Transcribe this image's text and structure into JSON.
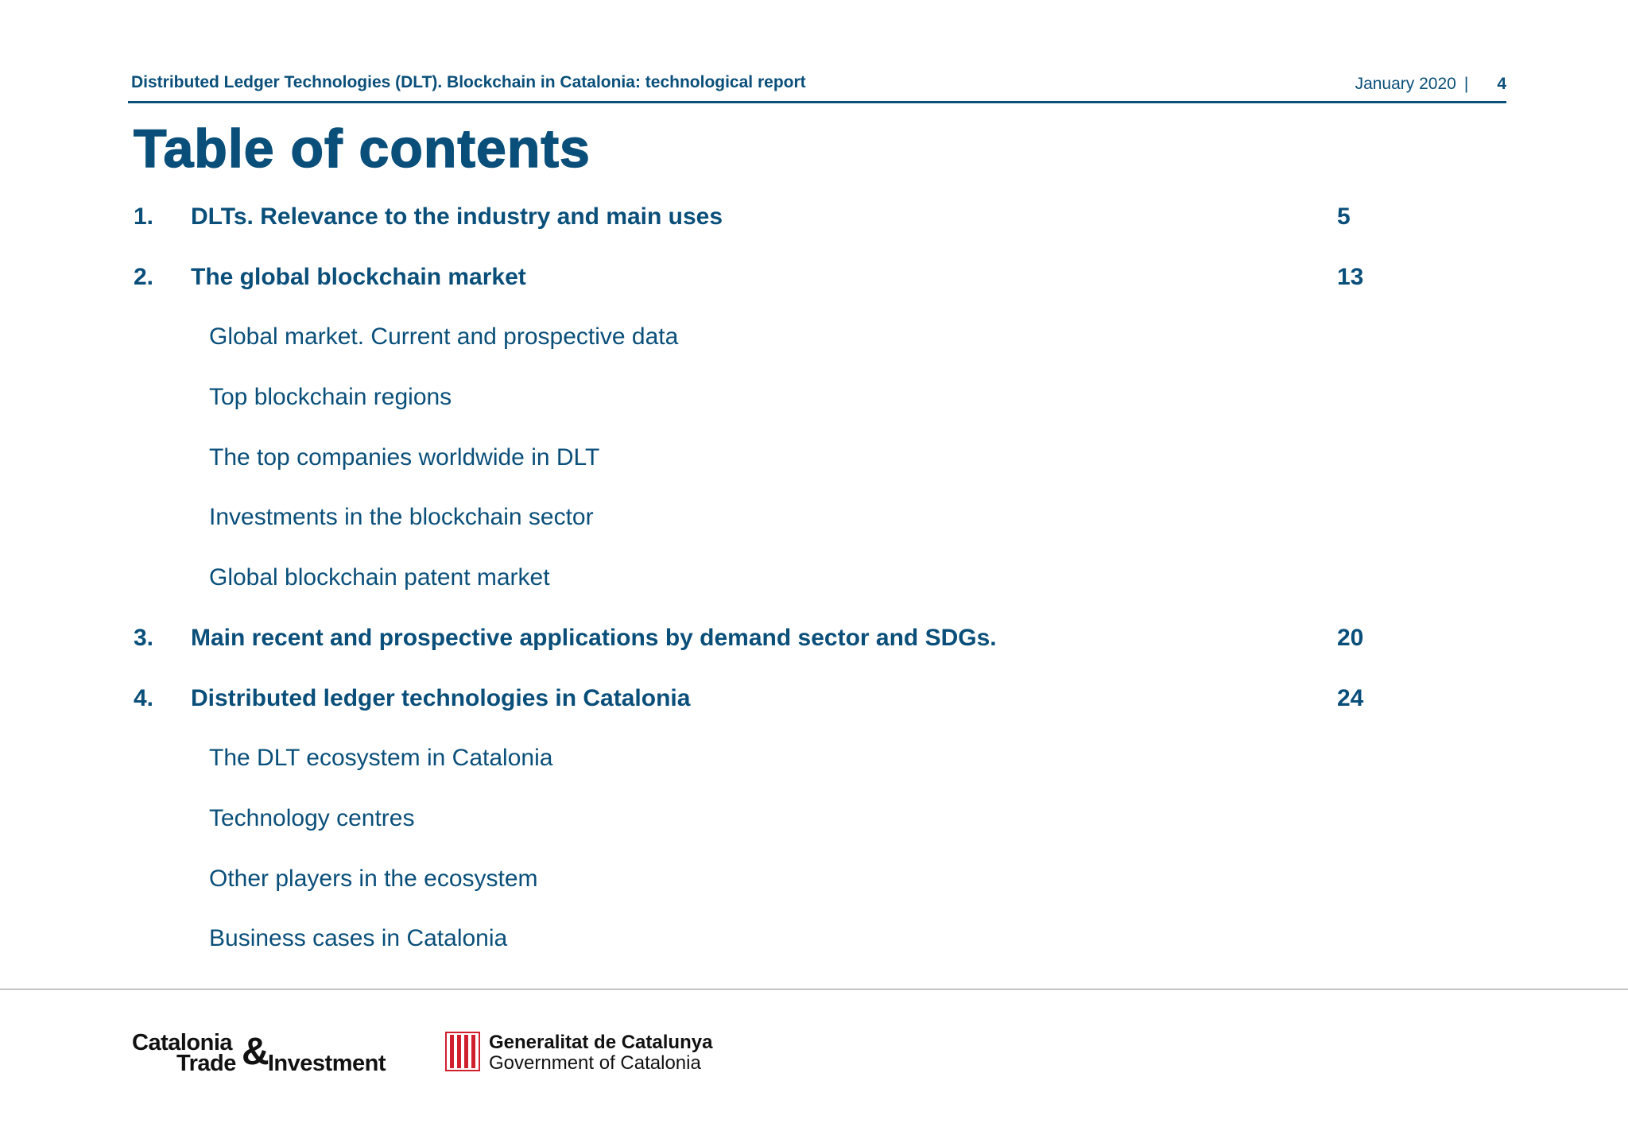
{
  "header": {
    "title": "Distributed Ledger Technologies (DLT). Blockchain in Catalonia: technological report",
    "date": "January 2020",
    "separator": "|",
    "page_number": "4"
  },
  "title": "Table of contents",
  "toc": [
    {
      "type": "main",
      "num": "1.",
      "label": "DLTs. Relevance to the industry and main uses",
      "page": "5"
    },
    {
      "type": "main",
      "num": "2.",
      "label": "The global blockchain market",
      "page": "13"
    },
    {
      "type": "sub",
      "label": "Global market. Current and prospective data"
    },
    {
      "type": "sub",
      "label": "Top blockchain regions"
    },
    {
      "type": "sub",
      "label": "The top companies worldwide in DLT"
    },
    {
      "type": "sub",
      "label": "Investments in the blockchain sector"
    },
    {
      "type": "sub",
      "label": "Global blockchain patent market"
    },
    {
      "type": "main",
      "num": "3.",
      "label": "Main recent and prospective applications by demand sector and SDGs.",
      "page": "20"
    },
    {
      "type": "main",
      "num": "4.",
      "label": "Distributed ledger technologies in Catalonia",
      "page": "24"
    },
    {
      "type": "sub",
      "label": "The DLT ecosystem in Catalonia"
    },
    {
      "type": "sub",
      "label": "Technology centres"
    },
    {
      "type": "sub",
      "label": "Other players in the ecosystem"
    },
    {
      "type": "sub",
      "label": "Business cases in Catalonia"
    }
  ],
  "footer": {
    "logo_cti": {
      "line1": "Catalonia",
      "amp": "&",
      "line2_a": "Trade",
      "line2_b": "Investment"
    },
    "logo_gencat": {
      "line1": "Generalitat de Catalunya",
      "line2": "Government of Catalonia"
    }
  },
  "colors": {
    "primary": "#0a4f7a",
    "emblem_red": "#d0202e",
    "logo_text": "#111111"
  }
}
